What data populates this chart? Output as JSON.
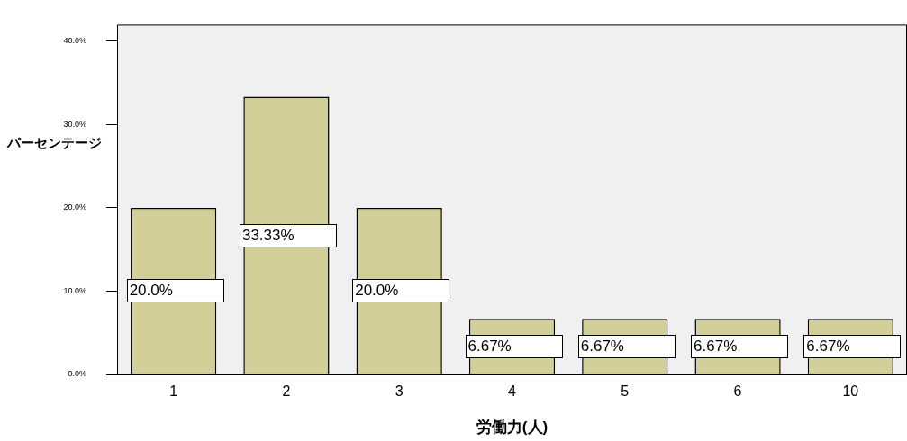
{
  "chart_data": {
    "type": "bar",
    "xlabel": "労働力(人)",
    "ylabel": "パーセンテージ",
    "categories": [
      "1",
      "2",
      "3",
      "4",
      "5",
      "6",
      "10"
    ],
    "values": [
      20,
      33.33,
      20,
      6.67,
      6.67,
      6.67,
      6.67
    ],
    "value_labels": [
      "20.0%",
      "33.33%",
      "20.0%",
      "6.67%",
      "6.67%",
      "6.67%",
      "6.67%"
    ],
    "color": "#d3cf98",
    "ylim": [
      0,
      42
    ],
    "yticks": [
      {
        "value": 0,
        "label": "0.0%"
      },
      {
        "value": 10,
        "label": "10.0%"
      },
      {
        "value": 20,
        "label": "20.0%"
      },
      {
        "value": 30,
        "label": "30.0%"
      },
      {
        "value": 40,
        "label": "40.0%"
      }
    ],
    "grid": false,
    "legend": false
  }
}
